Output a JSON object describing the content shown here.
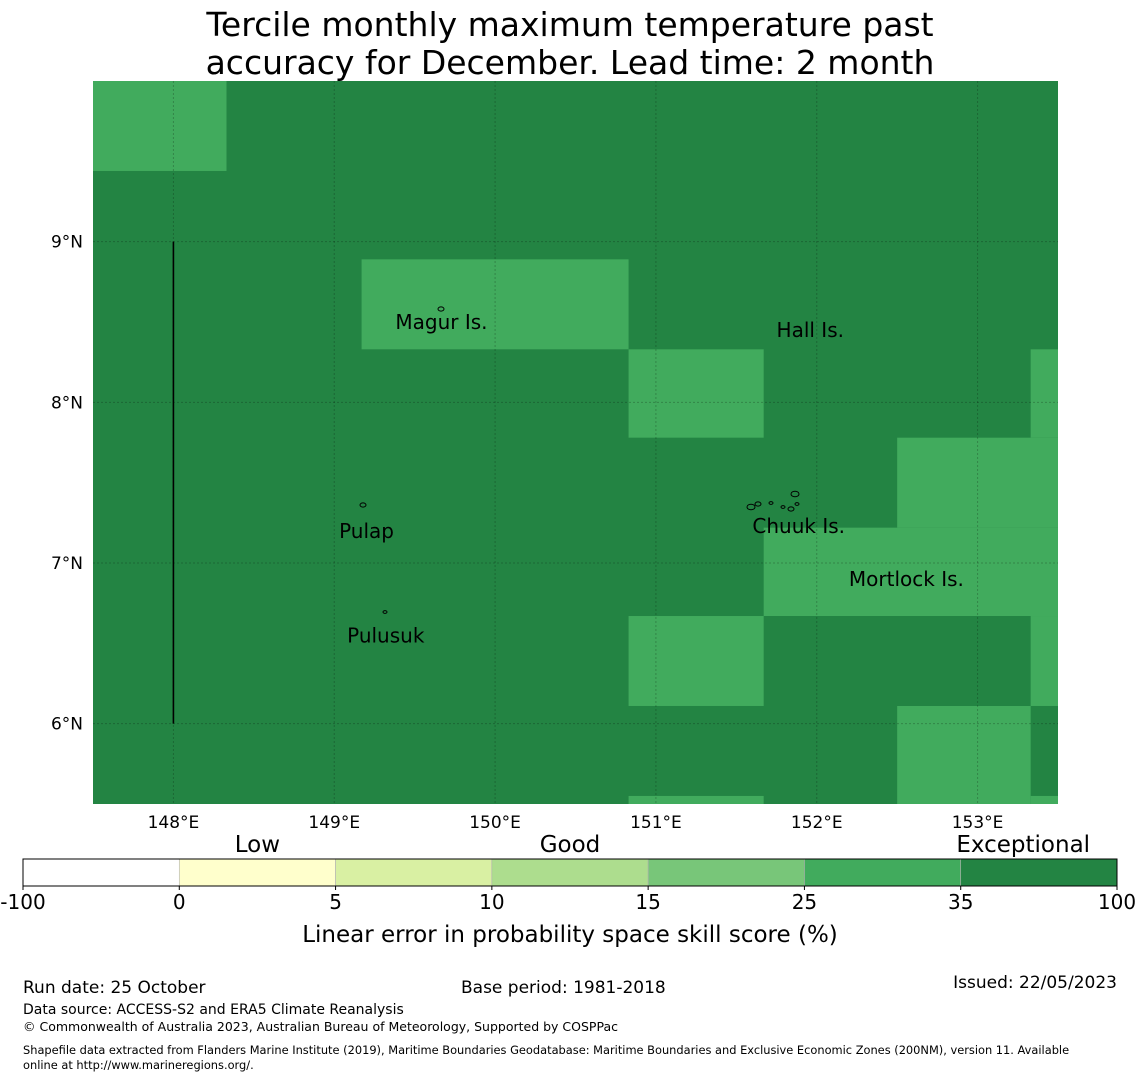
{
  "title": {
    "line1": "Tercile monthly maximum temperature past",
    "line2": "accuracy for December. Lead time: 2 month"
  },
  "map": {
    "extent": {
      "lon_min": 147.5,
      "lon_max": 153.5,
      "lat_min": 5.5,
      "lat_max": 10.0
    },
    "lon_ticks": [
      148,
      149,
      150,
      151,
      152,
      153
    ],
    "lon_labels": [
      "148°E",
      "149°E",
      "150°E",
      "151°E",
      "152°E",
      "153°E"
    ],
    "lat_ticks": [
      9,
      8,
      7,
      6
    ],
    "lat_labels": [
      "9°N",
      "8°N",
      "7°N",
      "6°N"
    ],
    "colors": {
      "good": "#41ab5d",
      "exceptional": "#238443"
    },
    "grid_cells": [
      {
        "lon": [
          147.5,
          148.33
        ],
        "lat": [
          9.44,
          10.0
        ],
        "category": "good"
      },
      {
        "lon": [
          149.17,
          150.83
        ],
        "lat": [
          8.33,
          8.89
        ],
        "category": "good"
      },
      {
        "lon": [
          150.83,
          151.67
        ],
        "lat": [
          7.78,
          8.33
        ],
        "category": "good"
      },
      {
        "lon": [
          153.33,
          153.5
        ],
        "lat": [
          7.78,
          8.33
        ],
        "category": "good"
      },
      {
        "lon": [
          152.5,
          153.5
        ],
        "lat": [
          7.22,
          7.78
        ],
        "category": "good"
      },
      {
        "lon": [
          151.67,
          153.5
        ],
        "lat": [
          6.67,
          7.22
        ],
        "category": "good"
      },
      {
        "lon": [
          150.83,
          151.67
        ],
        "lat": [
          6.11,
          6.67
        ],
        "category": "good"
      },
      {
        "lon": [
          153.33,
          153.5
        ],
        "lat": [
          6.11,
          6.67
        ],
        "category": "good"
      },
      {
        "lon": [
          152.5,
          153.33
        ],
        "lat": [
          5.5,
          6.11
        ],
        "category": "good"
      },
      {
        "lon": [
          153.33,
          153.5
        ],
        "lat": [
          5.5,
          5.55
        ],
        "category": "good"
      },
      {
        "lon": [
          150.83,
          151.67
        ],
        "lat": [
          5.5,
          5.55
        ],
        "category": "good"
      }
    ],
    "boundary_line": {
      "lon": 148.0,
      "lat": [
        6.0,
        9.0
      ]
    },
    "places": [
      {
        "name": "Magur Is.",
        "lon": 149.38,
        "lat": 8.5
      },
      {
        "name": "Hall Is.",
        "lon": 151.75,
        "lat": 8.45
      },
      {
        "name": "Pulap",
        "lon": 149.03,
        "lat": 7.2
      },
      {
        "name": "Chuuk Is.",
        "lon": 151.6,
        "lat": 7.23
      },
      {
        "name": "Mortlock Is.",
        "lon": 152.2,
        "lat": 6.9
      },
      {
        "name": "Pulusuk",
        "lon": 149.08,
        "lat": 6.55
      }
    ]
  },
  "colorbar": {
    "categories": [
      {
        "label": "Low",
        "center": 0.0
      },
      {
        "label": "Good",
        "center": 10.0
      },
      {
        "label": "Exceptional",
        "center": 35.0
      }
    ],
    "bins": [
      {
        "from": "-100",
        "to": "0",
        "color": "#ffffff"
      },
      {
        "from": "0",
        "to": "5",
        "color": "#ffffcc"
      },
      {
        "from": "5",
        "to": "10",
        "color": "#d9f0a3"
      },
      {
        "from": "10",
        "to": "15",
        "color": "#addd8e"
      },
      {
        "from": "15",
        "to": "25",
        "color": "#78c679"
      },
      {
        "from": "25",
        "to": "35",
        "color": "#41ab5d"
      },
      {
        "from": "35",
        "to": "100",
        "color": "#238443"
      }
    ],
    "ticks": [
      "-100",
      "0",
      "5",
      "10",
      "15",
      "25",
      "35",
      "100"
    ],
    "label": "Linear error in probability space skill score (%)"
  },
  "footer": {
    "run_date": "Run date: 25 October",
    "base_period": "Base period: 1981-2018",
    "issued": "Issued: 22/05/2023",
    "data_source": "Data source: ACCESS-S2 and ERA5 Climate Reanalysis",
    "copyright": "© Commonwealth of Australia 2023, Australian Bureau of Meteorology, Supported by COSPPac",
    "shapefile_line1": "Shapefile data extracted from Flanders Marine Institute (2019), Maritime Boundaries Geodatabase: Maritime Boundaries and Exclusive Economic Zones (200NM), version 11. Available",
    "shapefile_line2": "online at http://www.marineregions.org/."
  }
}
